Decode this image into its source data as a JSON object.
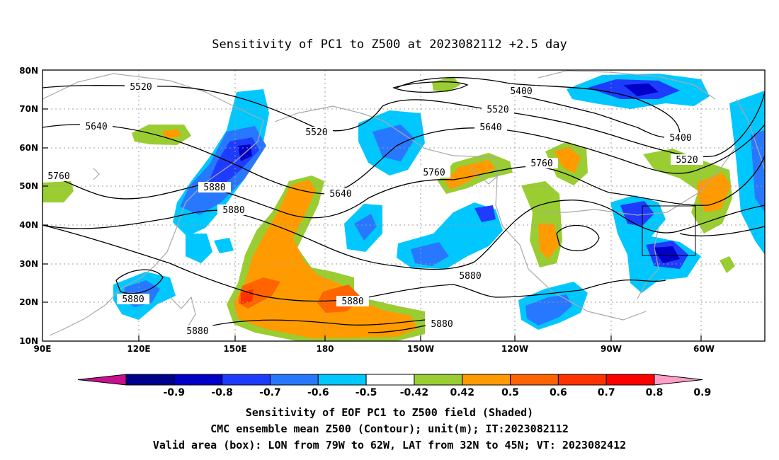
{
  "title": "Sensitivity of PC1 to Z500 at 2023082112 +2.5 day",
  "lat_labels": [
    "10N",
    "20N",
    "30N",
    "40N",
    "50N",
    "60N",
    "70N",
    "80N"
  ],
  "lon_labels": [
    "90E",
    "120E",
    "150E",
    "180",
    "150W",
    "120W",
    "90W",
    "60W"
  ],
  "contour_labels": [
    "5520",
    "5400",
    "5520",
    "5520",
    "5640",
    "5640",
    "5400",
    "5760",
    "5760",
    "5760",
    "5640",
    "5520",
    "5880",
    "5880",
    "5880",
    "5880",
    "5880",
    "5880",
    "5880"
  ],
  "colorbar": {
    "labels": [
      "-0.9",
      "-0.8",
      "-0.7",
      "-0.6",
      "-0.5",
      "-0.42",
      "0.42",
      "0.5",
      "0.6",
      "0.7",
      "0.8",
      "0.9"
    ],
    "colors": [
      "#c8108c",
      "#00008c",
      "#0000c8",
      "#1e3cff",
      "#2878ff",
      "#00c8ff",
      "#ffffff",
      "#9acd32",
      "#ff9b00",
      "#ff6400",
      "#ff3200",
      "#ff0000",
      "#ff9ec8"
    ]
  },
  "captions": {
    "line1": "Sensitivity of EOF PC1 to Z500 field (Shaded)",
    "line2": "CMC ensemble mean Z500 (Contour); unit(m); IT:2023082112",
    "line3": "Valid area (box): LON from 79W to 62W, LAT from 32N to 45N; VT: 2023082412"
  }
}
